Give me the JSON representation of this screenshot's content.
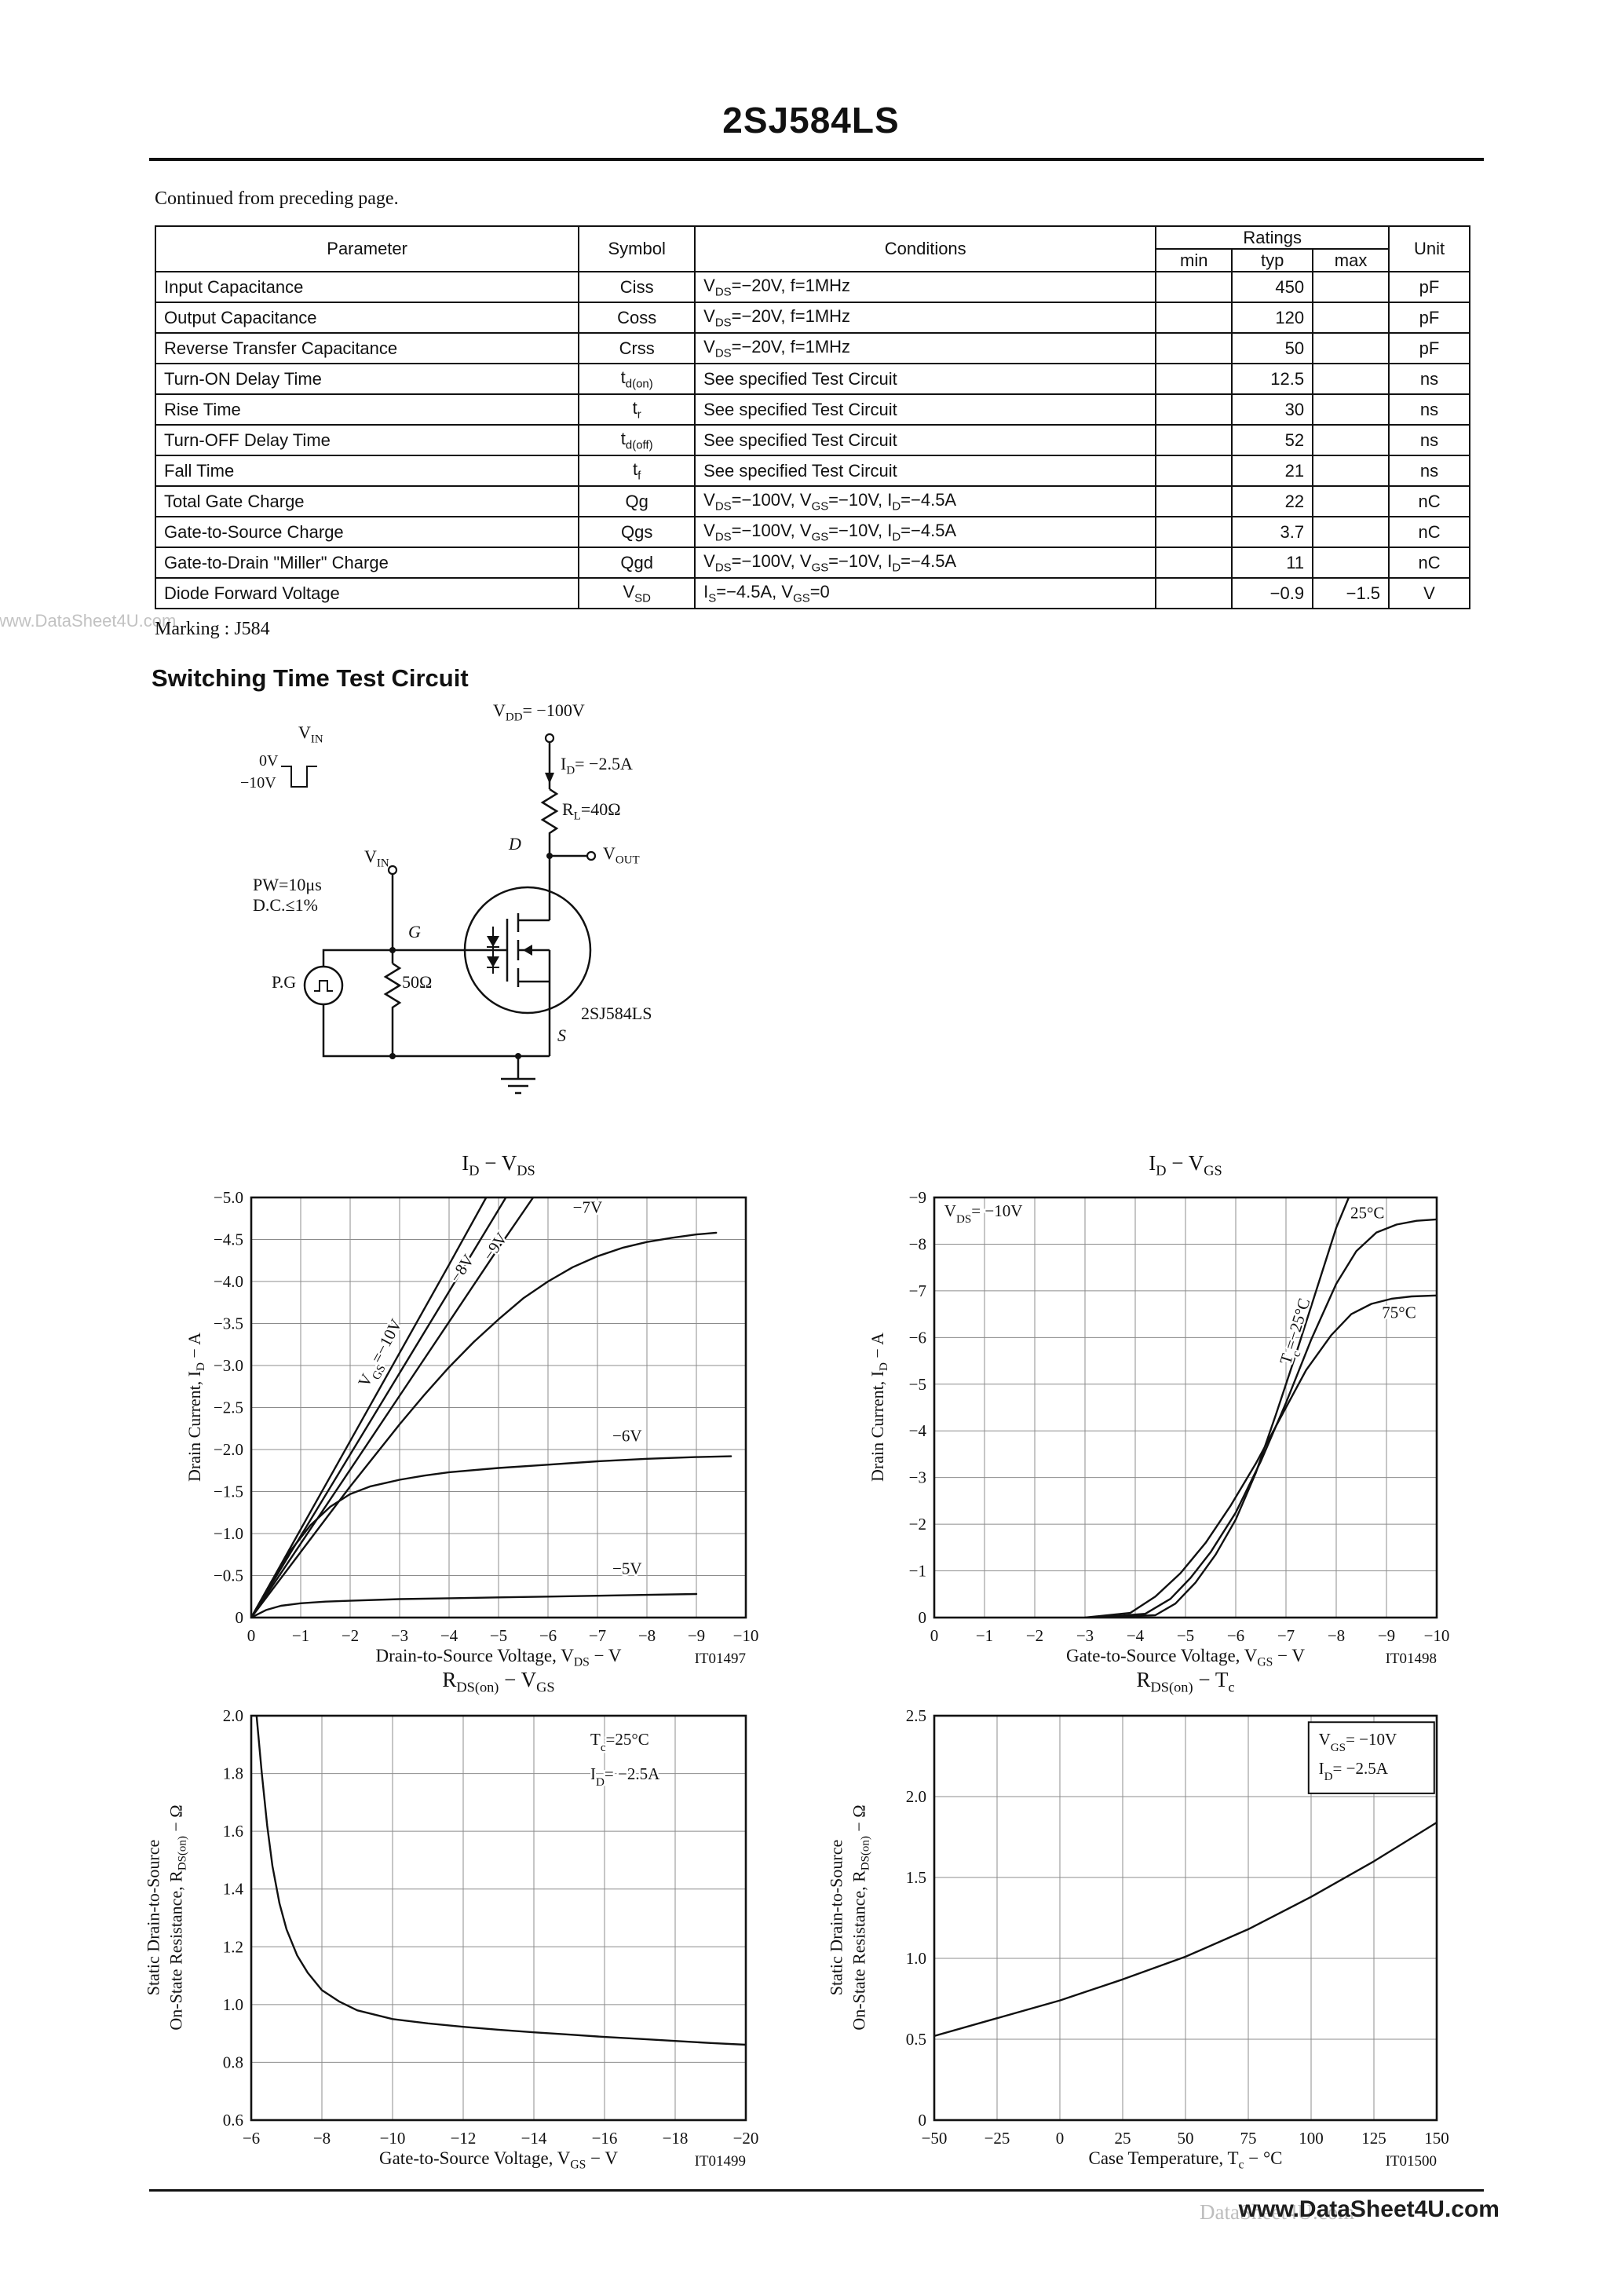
{
  "page": {
    "title": "2SJ584LS",
    "continued_note": "Continued from preceding page.",
    "marking_note": "Marking : J584",
    "section_heading": "Switching Time Test Circuit",
    "watermark_left": "www.DataSheet4U.com",
    "footer_url": "www.DataSheet4U.com",
    "footer_ghost": "DataSheet4U.com"
  },
  "table": {
    "headers": {
      "parameter": "Parameter",
      "symbol": "Symbol",
      "conditions": "Conditions",
      "ratings": "Ratings",
      "min": "min",
      "typ": "typ",
      "max": "max",
      "unit": "Unit"
    },
    "rows": [
      {
        "parameter": "Input Capacitance",
        "symbol": "Ciss",
        "conditions": "V~DS~=−20V, f=1MHz",
        "min": "",
        "typ": "450",
        "max": "",
        "unit": "pF"
      },
      {
        "parameter": "Output Capacitance",
        "symbol": "Coss",
        "conditions": "V~DS~=−20V, f=1MHz",
        "min": "",
        "typ": "120",
        "max": "",
        "unit": "pF"
      },
      {
        "parameter": "Reverse Transfer Capacitance",
        "symbol": "Crss",
        "conditions": "V~DS~=−20V, f=1MHz",
        "min": "",
        "typ": "50",
        "max": "",
        "unit": "pF"
      },
      {
        "parameter": "Turn-ON Delay Time",
        "symbol": "t~d(on)~",
        "conditions": "See specified Test Circuit",
        "min": "",
        "typ": "12.5",
        "max": "",
        "unit": "ns"
      },
      {
        "parameter": "Rise Time",
        "symbol": "t~r~",
        "conditions": "See specified Test Circuit",
        "min": "",
        "typ": "30",
        "max": "",
        "unit": "ns"
      },
      {
        "parameter": "Turn-OFF Delay Time",
        "symbol": "t~d(off)~",
        "conditions": "See specified Test Circuit",
        "min": "",
        "typ": "52",
        "max": "",
        "unit": "ns"
      },
      {
        "parameter": "Fall Time",
        "symbol": "t~f~",
        "conditions": "See specified Test Circuit",
        "min": "",
        "typ": "21",
        "max": "",
        "unit": "ns"
      },
      {
        "parameter": "Total Gate Charge",
        "symbol": "Qg",
        "conditions": "V~DS~=−100V, V~GS~=−10V, I~D~=−4.5A",
        "min": "",
        "typ": "22",
        "max": "",
        "unit": "nC"
      },
      {
        "parameter": "Gate-to-Source Charge",
        "symbol": "Qgs",
        "conditions": "V~DS~=−100V, V~GS~=−10V, I~D~=−4.5A",
        "min": "",
        "typ": "3.7",
        "max": "",
        "unit": "nC"
      },
      {
        "parameter": "Gate-to-Drain \"Miller\" Charge",
        "symbol": "Qgd",
        "conditions": "V~DS~=−100V, V~GS~=−10V, I~D~=−4.5A",
        "min": "",
        "typ": "11",
        "max": "",
        "unit": "nC"
      },
      {
        "parameter": "Diode Forward Voltage",
        "symbol": "V~SD~",
        "conditions": "I~S~=−4.5A, V~GS~=0",
        "min": "",
        "typ": "−0.9",
        "max": "−1.5",
        "unit": "V"
      }
    ]
  },
  "circuit": {
    "vdd": "V~DD~= −100V",
    "id_current": "I~D~= −2.5A",
    "rl": "R~L~=40Ω",
    "drain": "D",
    "vout": "V~OUT~",
    "vin_wave": "V~IN~",
    "level_0v": "0V",
    "level_neg10v": "−10V",
    "vin_gate": "V~IN~",
    "pw": "PW=10μs",
    "duty": "D.C.≤1%",
    "gate": "G",
    "pg": "P.G",
    "r50": "50Ω",
    "part": "2SJ584LS",
    "source": "S"
  },
  "chart_data": [
    {
      "type": "line",
      "title": "I~D~  −  V~DS~",
      "xlabel": "Drain-to-Source Voltage, V~DS~  −  V",
      "ylabel": [
        "Drain Current, I~D~  −  A"
      ],
      "fig_no": "IT01497",
      "x": {
        "min": 0,
        "max": 10,
        "vals": [
          0,
          1,
          2,
          3,
          4,
          5,
          6,
          7,
          8,
          9,
          10
        ],
        "labels": [
          "0",
          "−1",
          "−2",
          "−3",
          "−4",
          "−5",
          "−6",
          "−7",
          "−8",
          "−9",
          "−10"
        ]
      },
      "y": {
        "min": 0,
        "max": 5,
        "vals": [
          0,
          0.5,
          1,
          1.5,
          2,
          2.5,
          3,
          3.5,
          4,
          4.5,
          5
        ],
        "labels": [
          "0",
          "−0.5",
          "−1.0",
          "−1.5",
          "−2.0",
          "−2.5",
          "−3.0",
          "−3.5",
          "−4.0",
          "−4.5",
          "−5.0"
        ]
      },
      "series": [
        {
          "name": "VGS=-10V",
          "points": [
            [
              0,
              0
            ],
            [
              1,
              1.05
            ],
            [
              2,
              2.1
            ],
            [
              3,
              3.15
            ],
            [
              4,
              4.2
            ],
            [
              4.75,
              5.0
            ]
          ]
        },
        {
          "name": "VGS=-9V",
          "points": [
            [
              0,
              0
            ],
            [
              1,
              0.97
            ],
            [
              2,
              1.94
            ],
            [
              3,
              2.91
            ],
            [
              4,
              3.88
            ],
            [
              5.15,
              5.0
            ]
          ]
        },
        {
          "name": "VGS=-8V",
          "points": [
            [
              0,
              0
            ],
            [
              1,
              0.88
            ],
            [
              2,
              1.76
            ],
            [
              3,
              2.64
            ],
            [
              4,
              3.52
            ],
            [
              5,
              4.4
            ],
            [
              5.7,
              5.0
            ]
          ]
        },
        {
          "name": "VGS=-7V",
          "points": [
            [
              0,
              0
            ],
            [
              1,
              0.78
            ],
            [
              2,
              1.56
            ],
            [
              3,
              2.3
            ],
            [
              3.5,
              2.65
            ],
            [
              4,
              2.98
            ],
            [
              4.5,
              3.28
            ],
            [
              5,
              3.55
            ],
            [
              5.5,
              3.8
            ],
            [
              6,
              4.0
            ],
            [
              6.5,
              4.17
            ],
            [
              7,
              4.3
            ],
            [
              7.5,
              4.4
            ],
            [
              8,
              4.47
            ],
            [
              8.5,
              4.52
            ],
            [
              9,
              4.56
            ],
            [
              9.4,
              4.58
            ]
          ]
        },
        {
          "name": "VGS=-6V",
          "points": [
            [
              0,
              0
            ],
            [
              0.4,
              0.42
            ],
            [
              0.8,
              0.8
            ],
            [
              1.2,
              1.1
            ],
            [
              1.6,
              1.32
            ],
            [
              2,
              1.47
            ],
            [
              2.4,
              1.56
            ],
            [
              3,
              1.64
            ],
            [
              3.5,
              1.69
            ],
            [
              4,
              1.73
            ],
            [
              5,
              1.78
            ],
            [
              6,
              1.82
            ],
            [
              7,
              1.86
            ],
            [
              8,
              1.89
            ],
            [
              9,
              1.91
            ],
            [
              9.7,
              1.92
            ]
          ]
        },
        {
          "name": "VGS=-5V",
          "points": [
            [
              0,
              0
            ],
            [
              0.3,
              0.09
            ],
            [
              0.6,
              0.14
            ],
            [
              1,
              0.17
            ],
            [
              1.5,
              0.19
            ],
            [
              2,
              0.2
            ],
            [
              3,
              0.22
            ],
            [
              4,
              0.23
            ],
            [
              5,
              0.24
            ],
            [
              6,
              0.25
            ],
            [
              7,
              0.26
            ],
            [
              8,
              0.27
            ],
            [
              9,
              0.28
            ]
          ]
        }
      ],
      "ann": [
        {
          "text": "V~GS~=−10V",
          "x": 2.7,
          "y": 3.12,
          "rotate": -62
        },
        {
          "text": "−8V",
          "x": 4.35,
          "y": 4.12,
          "rotate": -56
        },
        {
          "text": "−9V",
          "x": 5.02,
          "y": 4.38,
          "rotate": -56
        },
        {
          "text": "−7V",
          "x": 6.8,
          "y": 4.82
        },
        {
          "text": "−6V",
          "x": 7.6,
          "y": 2.1
        },
        {
          "text": "−5V",
          "x": 7.6,
          "y": 0.52
        }
      ]
    },
    {
      "type": "line",
      "title": "I~D~  −  V~GS~",
      "xlabel": "Gate-to-Source Voltage, V~GS~  −  V",
      "ylabel": [
        "Drain Current, I~D~  −  A"
      ],
      "fig_no": "IT01498",
      "x": {
        "min": 0,
        "max": 10,
        "vals": [
          0,
          1,
          2,
          3,
          4,
          5,
          6,
          7,
          8,
          9,
          10
        ],
        "labels": [
          "0",
          "−1",
          "−2",
          "−3",
          "−4",
          "−5",
          "−6",
          "−7",
          "−8",
          "−9",
          "−10"
        ]
      },
      "y": {
        "min": 0,
        "max": 9,
        "vals": [
          0,
          1,
          2,
          3,
          4,
          5,
          6,
          7,
          8,
          9
        ],
        "labels": [
          "0",
          "−1",
          "−2",
          "−3",
          "−4",
          "−5",
          "−6",
          "−7",
          "−8",
          "−9"
        ]
      },
      "series": [
        {
          "name": "Tc=-25°C",
          "points": [
            [
              3.3,
              0
            ],
            [
              4.4,
              0.05
            ],
            [
              4.8,
              0.3
            ],
            [
              5.2,
              0.75
            ],
            [
              5.6,
              1.35
            ],
            [
              6,
              2.1
            ],
            [
              6.4,
              3.1
            ],
            [
              6.8,
              4.35
            ],
            [
              7.2,
              5.65
            ],
            [
              7.6,
              7.0
            ],
            [
              8,
              8.35
            ],
            [
              8.25,
              9.0
            ]
          ]
        },
        {
          "name": "Tc=25°C",
          "points": [
            [
              3.2,
              0
            ],
            [
              4.2,
              0.08
            ],
            [
              4.7,
              0.4
            ],
            [
              5.1,
              0.85
            ],
            [
              5.5,
              1.4
            ],
            [
              6,
              2.25
            ],
            [
              6.5,
              3.35
            ],
            [
              7,
              4.6
            ],
            [
              7.5,
              5.95
            ],
            [
              8,
              7.15
            ],
            [
              8.4,
              7.85
            ],
            [
              8.8,
              8.25
            ],
            [
              9.2,
              8.42
            ],
            [
              9.6,
              8.5
            ],
            [
              10,
              8.53
            ]
          ]
        },
        {
          "name": "Tc=75°C",
          "points": [
            [
              3.0,
              0
            ],
            [
              3.9,
              0.1
            ],
            [
              4.4,
              0.45
            ],
            [
              4.9,
              0.95
            ],
            [
              5.4,
              1.6
            ],
            [
              5.9,
              2.4
            ],
            [
              6.4,
              3.3
            ],
            [
              6.9,
              4.3
            ],
            [
              7.4,
              5.3
            ],
            [
              7.9,
              6.05
            ],
            [
              8.3,
              6.5
            ],
            [
              8.7,
              6.72
            ],
            [
              9.1,
              6.83
            ],
            [
              9.5,
              6.88
            ],
            [
              10,
              6.9
            ]
          ]
        }
      ],
      "ann": [
        {
          "text": "V~DS~= −10V",
          "x": 0.2,
          "y": 8.6,
          "anchor": "start"
        },
        {
          "text": "T~c~=−25°C",
          "x": 7.28,
          "y": 6.1,
          "rotate": -73
        },
        {
          "text": "25°C",
          "x": 8.62,
          "y": 8.55
        },
        {
          "text": "75°C",
          "x": 9.25,
          "y": 6.42
        }
      ]
    },
    {
      "type": "line",
      "title": "R~DS(on)~  −  V~GS~",
      "xlabel": "Gate-to-Source Voltage, V~GS~  −  V",
      "ylabel": [
        "Static Drain-to-Source",
        "On-State Resistance, R~DS(on)~  −  Ω"
      ],
      "fig_no": "IT01499",
      "x": {
        "min": 6,
        "max": 20,
        "vals": [
          6,
          8,
          10,
          12,
          14,
          16,
          18,
          20
        ],
        "labels": [
          "−6",
          "−8",
          "−10",
          "−12",
          "−14",
          "−16",
          "−18",
          "−20"
        ]
      },
      "y": {
        "min": 0.6,
        "max": 2.0,
        "vals": [
          0.6,
          0.8,
          1.0,
          1.2,
          1.4,
          1.6,
          1.8,
          2.0
        ],
        "labels": [
          "0.6",
          "0.8",
          "1.0",
          "1.2",
          "1.4",
          "1.6",
          "1.8",
          "2.0"
        ]
      },
      "series": [
        {
          "name": "RDS(on)",
          "points": [
            [
              6.15,
              2.0
            ],
            [
              6.3,
              1.8
            ],
            [
              6.45,
              1.62
            ],
            [
              6.6,
              1.48
            ],
            [
              6.8,
              1.35
            ],
            [
              7.0,
              1.26
            ],
            [
              7.3,
              1.17
            ],
            [
              7.6,
              1.11
            ],
            [
              8.0,
              1.05
            ],
            [
              8.5,
              1.01
            ],
            [
              9.0,
              0.98
            ],
            [
              10,
              0.95
            ],
            [
              11,
              0.935
            ],
            [
              12,
              0.923
            ],
            [
              13,
              0.913
            ],
            [
              14,
              0.904
            ],
            [
              15,
              0.896
            ],
            [
              16,
              0.888
            ],
            [
              17,
              0.881
            ],
            [
              18,
              0.874
            ],
            [
              19,
              0.867
            ],
            [
              20,
              0.861
            ]
          ]
        }
      ],
      "ann": [
        {
          "text": "T~c~=25°C",
          "x": 15.6,
          "y": 1.9,
          "anchor": "start"
        },
        {
          "text": "I~D~= −2.5A",
          "x": 15.6,
          "y": 1.78,
          "anchor": "start"
        }
      ]
    },
    {
      "type": "line",
      "title": "R~DS(on)~  −  T~c~",
      "xlabel": "Case Temperature, T~c~  −  °C",
      "ylabel": [
        "Static Drain-to-Source",
        "On-State Resistance, R~DS(on)~  −  Ω"
      ],
      "fig_no": "IT01500",
      "x": {
        "min": -50,
        "max": 150,
        "vals": [
          -50,
          -25,
          0,
          25,
          50,
          75,
          100,
          125,
          150
        ],
        "labels": [
          "−50",
          "−25",
          "0",
          "25",
          "50",
          "75",
          "100",
          "125",
          "150"
        ]
      },
      "y": {
        "min": 0,
        "max": 2.5,
        "vals": [
          0,
          0.5,
          1.0,
          1.5,
          2.0,
          2.5
        ],
        "labels": [
          "0",
          "0.5",
          "1.0",
          "1.5",
          "2.0",
          "2.5"
        ]
      },
      "series": [
        {
          "name": "RDS(on)",
          "points": [
            [
              -50,
              0.52
            ],
            [
              -25,
              0.63
            ],
            [
              0,
              0.74
            ],
            [
              25,
              0.87
            ],
            [
              50,
              1.01
            ],
            [
              75,
              1.18
            ],
            [
              100,
              1.38
            ],
            [
              125,
              1.6
            ],
            [
              150,
              1.84
            ]
          ]
        }
      ],
      "ann": [
        {
          "text": "V~GS~= −10V",
          "x": 103,
          "y": 2.32,
          "anchor": "start"
        },
        {
          "text": "I~D~= −2.5A",
          "x": 103,
          "y": 2.14,
          "anchor": "start"
        }
      ],
      "box": {
        "x1": 99,
        "y1": 2.46,
        "x2": 149,
        "y2": 2.02
      }
    }
  ]
}
